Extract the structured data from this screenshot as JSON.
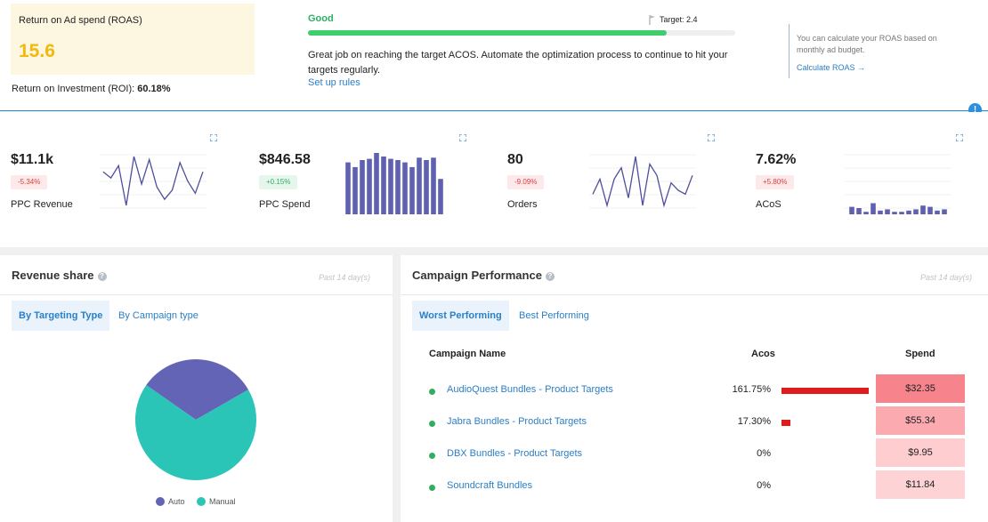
{
  "roas": {
    "title": "Return on Ad spend (ROAS)",
    "value": "15.6",
    "roi_label": "Return on Investment (ROI):",
    "roi_value": "60.18%"
  },
  "status": {
    "label": "Good",
    "target_label": "Target: 2.4",
    "progress": 0.84,
    "message": "Great job on reaching the target ACOS. Automate the optimization process to continue to hit your targets regularly.",
    "link": "Set up rules"
  },
  "info": {
    "text": "You can calculate your ROAS based on monthly ad budget.",
    "link": "Calculate ROAS →",
    "badge": "!"
  },
  "metrics": [
    {
      "value": "$11.1k",
      "change": "-5.34%",
      "trend": "neg",
      "label": "PPC Revenue",
      "chart": "line",
      "series": [
        40,
        36,
        44,
        18,
        50,
        32,
        48,
        30,
        22,
        28,
        46,
        34,
        26,
        40
      ]
    },
    {
      "value": "$846.58",
      "change": "+0.15%",
      "trend": "pos",
      "label": "PPC Spend",
      "chart": "bar",
      "series": [
        44,
        40,
        46,
        47,
        52,
        49,
        47,
        46,
        44,
        40,
        48,
        46,
        48,
        30
      ]
    },
    {
      "value": "80",
      "change": "-9.09%",
      "trend": "neg",
      "label": "Orders",
      "chart": "line",
      "series": [
        5,
        9,
        2,
        9,
        12,
        4,
        15,
        2,
        13,
        10,
        2,
        8,
        6,
        5,
        10
      ]
    },
    {
      "value": "7.62%",
      "change": "+5.80%",
      "trend": "neg",
      "label": "ACoS",
      "chart": "bar",
      "series": [
        6,
        5,
        2,
        9,
        3,
        4,
        2,
        2,
        3,
        4,
        7,
        6,
        3,
        4
      ]
    }
  ],
  "revenue_share": {
    "title": "Revenue share",
    "period": "Past 14 day(s)",
    "tabs": [
      "By Targeting Type",
      "By Campaign type"
    ],
    "pie": [
      {
        "name": "Auto",
        "value": 32,
        "color": "#6364b5"
      },
      {
        "name": "Manual",
        "value": 68,
        "color": "#2bc5b8"
      }
    ]
  },
  "campaign": {
    "title": "Campaign Performance",
    "period": "Past 14 day(s)",
    "tabs": [
      "Worst Performing",
      "Best Performing"
    ],
    "columns": {
      "name": "Campaign Name",
      "acos": "Acos",
      "spend": "Spend"
    },
    "rows": [
      {
        "name": "AudioQuest Bundles - Product Targets",
        "acos": "161.75%",
        "acos_value": 161.75,
        "spend": "$32.35",
        "spend_value": 32.35
      },
      {
        "name": "Jabra Bundles - Product Targets",
        "acos": "17.30%",
        "acos_value": 17.3,
        "spend": "$55.34",
        "spend_value": 55.34
      },
      {
        "name": "DBX Bundles - Product Targets",
        "acos": "0%",
        "acos_value": 0,
        "spend": "$9.95",
        "spend_value": 9.95
      },
      {
        "name": "Soundcraft Bundles",
        "acos": "0%",
        "acos_value": 0,
        "spend": "$11.84",
        "spend_value": 11.84
      }
    ],
    "spend_colors": [
      "#f7848c",
      "#fbabb0",
      "#fdcdd0",
      "#fdd3d6"
    ]
  }
}
